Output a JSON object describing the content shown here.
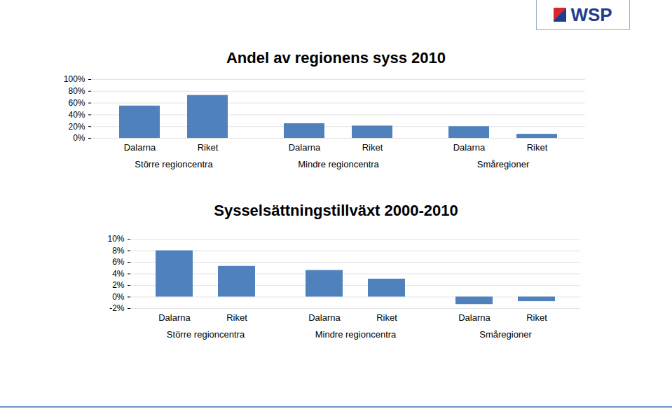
{
  "logo": "WSP",
  "chart_data": [
    {
      "type": "bar",
      "title": "Andel av regionens syss 2010",
      "categories": [
        "Dalarna",
        "Riket",
        "Dalarna",
        "Riket",
        "Dalarna",
        "Riket"
      ],
      "groups": [
        "Större regioncentra",
        "Större regioncentra",
        "Mindre regioncentra",
        "Mindre regioncentra",
        "Småregioner",
        "Småregioner"
      ],
      "values": [
        55,
        73,
        25,
        21,
        20,
        7
      ],
      "color": "#4f81bd",
      "ylim": [
        0,
        100
      ],
      "yticks": [
        {
          "value": 0,
          "label": "0%"
        },
        {
          "value": 20,
          "label": "20%"
        },
        {
          "value": 40,
          "label": "40%"
        },
        {
          "value": 60,
          "label": "60%"
        },
        {
          "value": 80,
          "label": "80%"
        },
        {
          "value": 100,
          "label": "100%"
        }
      ],
      "grid": true
    },
    {
      "type": "bar",
      "title": "Sysselsättningstillväxt 2000-2010",
      "categories": [
        "Dalarna",
        "Riket",
        "Dalarna",
        "Riket",
        "Dalarna",
        "Riket"
      ],
      "groups": [
        "Större regioncentra",
        "Större regioncentra",
        "Mindre regioncentra",
        "Mindre regioncentra",
        "Småregioner",
        "Småregioner"
      ],
      "values": [
        8,
        5.3,
        4.6,
        3.1,
        -1.3,
        -0.8
      ],
      "color": "#4f81bd",
      "ylim": [
        -2,
        10
      ],
      "yticks": [
        {
          "value": -2,
          "label": "-2%"
        },
        {
          "value": 0,
          "label": "0%"
        },
        {
          "value": 2,
          "label": "2%"
        },
        {
          "value": 4,
          "label": "4%"
        },
        {
          "value": 6,
          "label": "6%"
        },
        {
          "value": 8,
          "label": "8%"
        },
        {
          "value": 10,
          "label": "10%"
        }
      ],
      "grid": true
    }
  ]
}
